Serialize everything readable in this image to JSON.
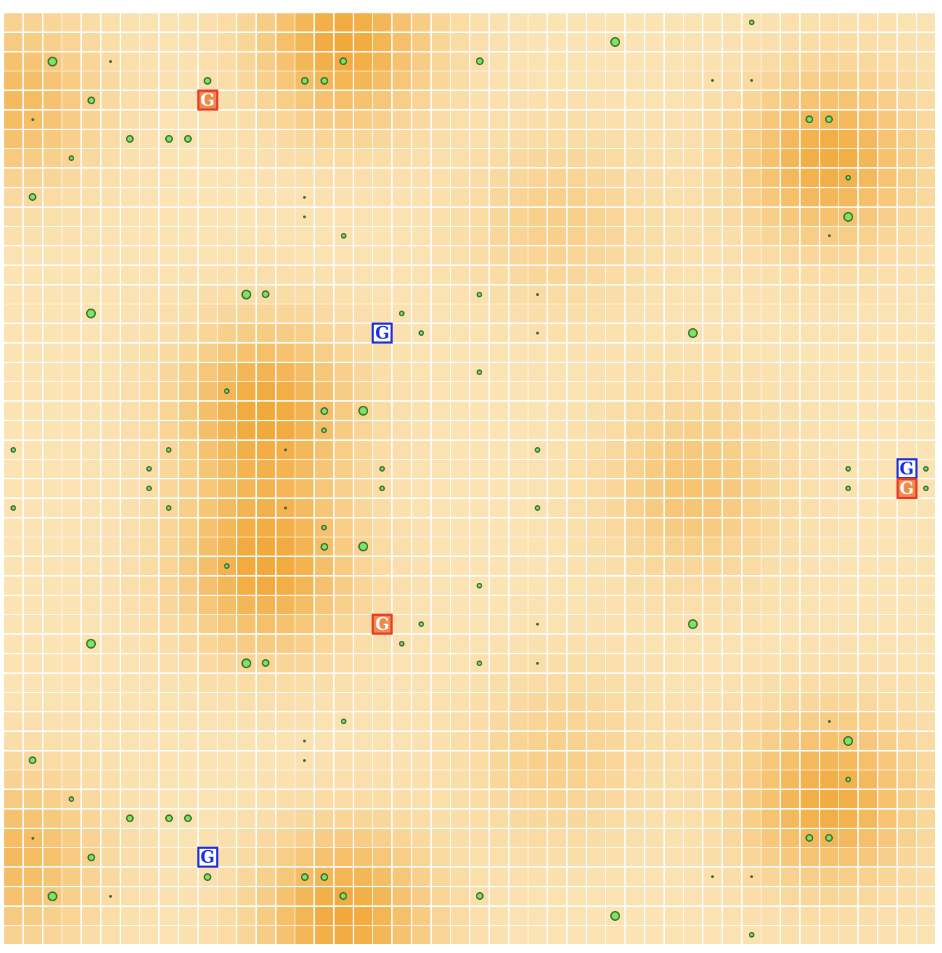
{
  "board": {
    "grid_label": "resource-heatmap-grid",
    "cols": 48,
    "rows": 48,
    "hotspots": [
      {
        "col": 17,
        "row": 1,
        "strength": 1.0
      },
      {
        "col": 42,
        "row": 7,
        "strength": 0.95
      },
      {
        "col": 13,
        "row": 20,
        "strength": 1.0
      },
      {
        "col": 13,
        "row": 28,
        "strength": 1.0
      },
      {
        "col": 17,
        "row": 46,
        "strength": 1.0
      },
      {
        "col": 42,
        "row": 40,
        "strength": 0.95
      },
      {
        "col": 0,
        "row": 4,
        "strength": 0.7
      },
      {
        "col": 0,
        "row": 43,
        "strength": 0.7
      },
      {
        "col": 35,
        "row": 24,
        "strength": 0.55
      },
      {
        "col": 28,
        "row": 10,
        "strength": 0.35
      },
      {
        "col": 28,
        "row": 38,
        "strength": 0.35
      }
    ],
    "colors": {
      "base": "#fbe3b4",
      "hot": "#f2a93b",
      "line": "#ffffff",
      "food": "#79e85a",
      "food_outline": "#3d6b3a"
    }
  },
  "food": [
    [
      38,
      0,
      "s"
    ],
    [
      31,
      1,
      "l"
    ],
    [
      2,
      2,
      "l"
    ],
    [
      5,
      2,
      "t"
    ],
    [
      17,
      2,
      "m"
    ],
    [
      24,
      2,
      "m"
    ],
    [
      10,
      3,
      "m"
    ],
    [
      15,
      3,
      "m"
    ],
    [
      16,
      3,
      "m"
    ],
    [
      36,
      3,
      "t"
    ],
    [
      38,
      3,
      "t"
    ],
    [
      4,
      4,
      "m"
    ],
    [
      1,
      5,
      "t"
    ],
    [
      41,
      5,
      "m"
    ],
    [
      42,
      5,
      "m"
    ],
    [
      6,
      6,
      "m"
    ],
    [
      8,
      6,
      "m"
    ],
    [
      9,
      6,
      "m"
    ],
    [
      3,
      7,
      "s"
    ],
    [
      43,
      8,
      "s"
    ],
    [
      1,
      9,
      "m"
    ],
    [
      15,
      9,
      "t"
    ],
    [
      15,
      10,
      "t"
    ],
    [
      43,
      10,
      "l"
    ],
    [
      17,
      11,
      "s"
    ],
    [
      42,
      11,
      "t"
    ],
    [
      12,
      14,
      "l"
    ],
    [
      13,
      14,
      "m"
    ],
    [
      24,
      14,
      "s"
    ],
    [
      27,
      14,
      "t"
    ],
    [
      4,
      15,
      "l"
    ],
    [
      20,
      15,
      "s"
    ],
    [
      21,
      16,
      "s"
    ],
    [
      27,
      16,
      "t"
    ],
    [
      35,
      16,
      "l"
    ],
    [
      24,
      18,
      "s"
    ],
    [
      11,
      19,
      "s"
    ],
    [
      16,
      20,
      "m"
    ],
    [
      18,
      20,
      "l"
    ],
    [
      16,
      21,
      "s"
    ],
    [
      0,
      22,
      "s"
    ],
    [
      8,
      22,
      "s"
    ],
    [
      14,
      22,
      "t"
    ],
    [
      27,
      22,
      "s"
    ],
    [
      7,
      23,
      "s"
    ],
    [
      19,
      23,
      "s"
    ],
    [
      47,
      23,
      "s"
    ],
    [
      7,
      24,
      "s"
    ],
    [
      19,
      24,
      "s"
    ],
    [
      43,
      23,
      "s"
    ],
    [
      43,
      24,
      "s"
    ],
    [
      47,
      24,
      "s"
    ],
    [
      0,
      25,
      "s"
    ],
    [
      8,
      25,
      "s"
    ],
    [
      14,
      25,
      "t"
    ],
    [
      27,
      25,
      "s"
    ],
    [
      16,
      26,
      "s"
    ],
    [
      16,
      27,
      "m"
    ],
    [
      18,
      27,
      "l"
    ],
    [
      11,
      28,
      "s"
    ],
    [
      24,
      29,
      "s"
    ],
    [
      21,
      31,
      "s"
    ],
    [
      27,
      31,
      "t"
    ],
    [
      35,
      31,
      "l"
    ],
    [
      4,
      32,
      "l"
    ],
    [
      20,
      32,
      "s"
    ],
    [
      12,
      33,
      "l"
    ],
    [
      13,
      33,
      "m"
    ],
    [
      24,
      33,
      "s"
    ],
    [
      27,
      33,
      "t"
    ],
    [
      17,
      36,
      "s"
    ],
    [
      42,
      36,
      "t"
    ],
    [
      15,
      37,
      "t"
    ],
    [
      43,
      37,
      "l"
    ],
    [
      15,
      38,
      "t"
    ],
    [
      1,
      38,
      "m"
    ],
    [
      43,
      39,
      "s"
    ],
    [
      3,
      40,
      "s"
    ],
    [
      6,
      41,
      "m"
    ],
    [
      8,
      41,
      "m"
    ],
    [
      9,
      41,
      "m"
    ],
    [
      1,
      42,
      "t"
    ],
    [
      41,
      42,
      "m"
    ],
    [
      42,
      42,
      "m"
    ],
    [
      4,
      43,
      "m"
    ],
    [
      10,
      44,
      "m"
    ],
    [
      15,
      44,
      "m"
    ],
    [
      16,
      44,
      "m"
    ],
    [
      36,
      44,
      "t"
    ],
    [
      38,
      44,
      "t"
    ],
    [
      2,
      45,
      "l"
    ],
    [
      5,
      45,
      "t"
    ],
    [
      17,
      45,
      "m"
    ],
    [
      24,
      45,
      "m"
    ],
    [
      31,
      46,
      "l"
    ],
    [
      38,
      47,
      "s"
    ]
  ],
  "guards": [
    {
      "label": "G",
      "team": "red",
      "col": 10,
      "row": 4
    },
    {
      "label": "G",
      "team": "blue",
      "col": 19,
      "row": 16
    },
    {
      "label": "G",
      "team": "blue",
      "col": 46,
      "row": 23
    },
    {
      "label": "G",
      "team": "red",
      "col": 46,
      "row": 24
    },
    {
      "label": "G",
      "team": "red",
      "col": 19,
      "row": 31
    },
    {
      "label": "G",
      "team": "blue",
      "col": 10,
      "row": 43
    }
  ]
}
